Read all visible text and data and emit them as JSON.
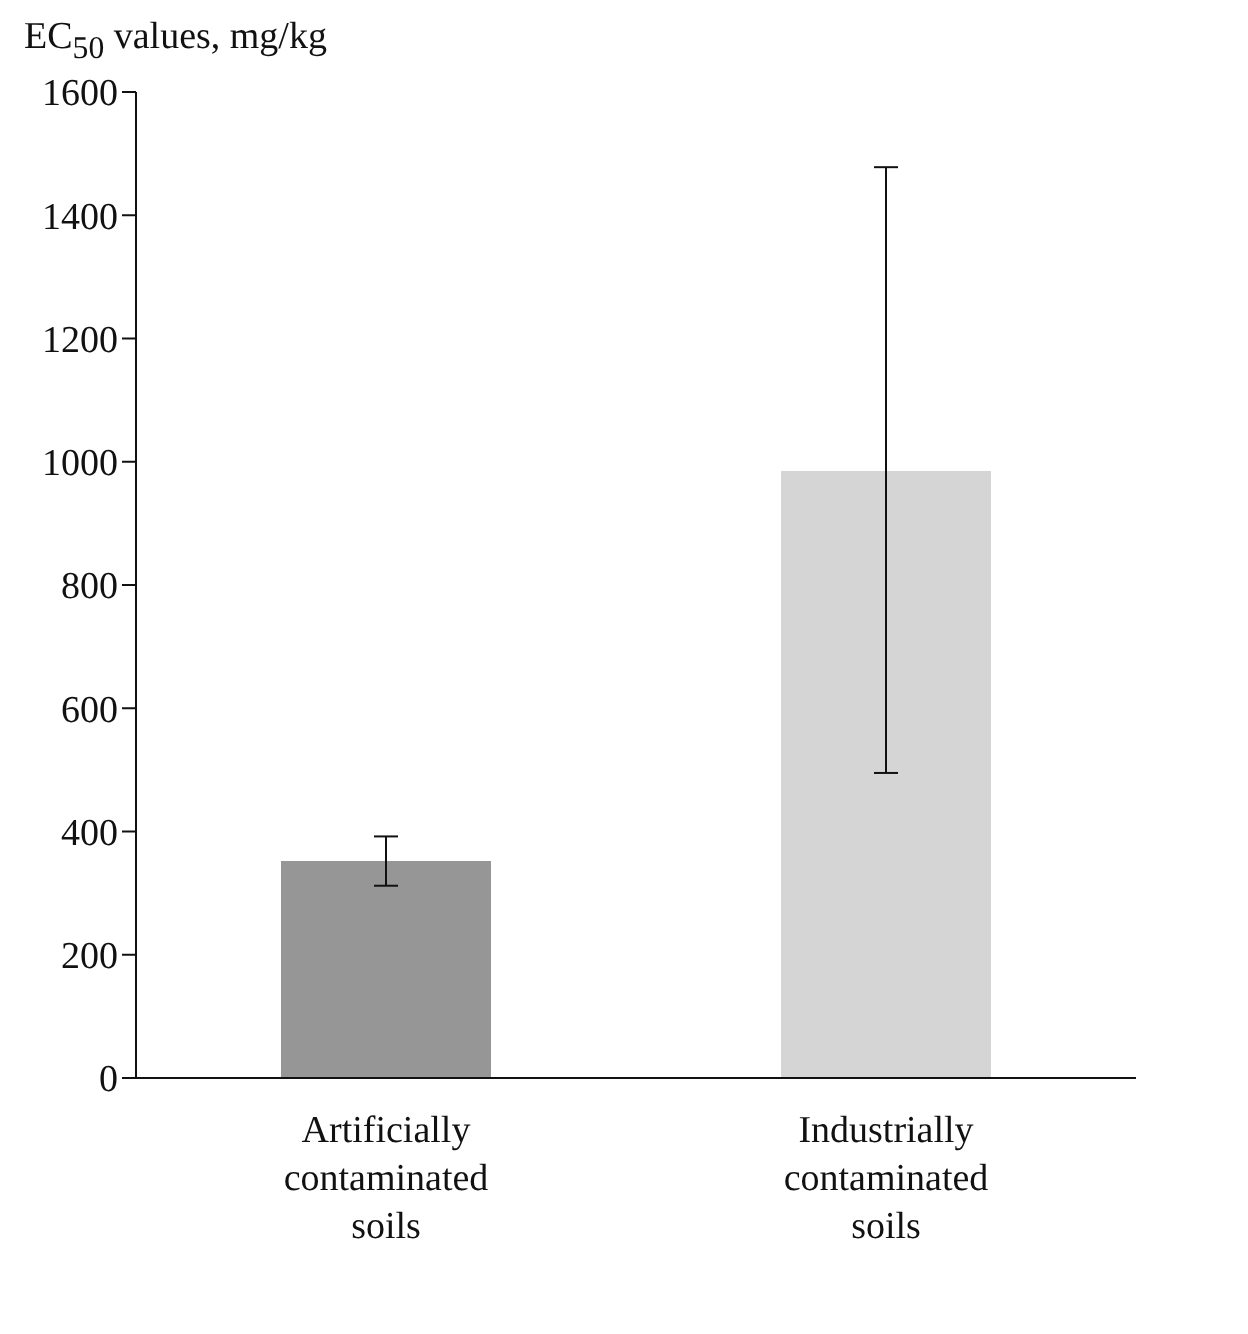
{
  "chart_data": {
    "type": "bar",
    "ylabel": "EC$_{50}$ values, mg/kg",
    "categories": [
      "Artificially contaminated soils",
      "Industrially contaminated soils"
    ],
    "values": [
      352,
      985
    ],
    "colors": [
      "#969696",
      "#d5d5d5"
    ],
    "errors": [
      [
        312,
        392
      ],
      [
        495,
        1478
      ]
    ],
    "ylim": [
      0,
      1600
    ],
    "yticks": [
      0,
      200,
      400,
      600,
      800,
      1000,
      1200,
      1400,
      1600
    ],
    "grid": false
  }
}
